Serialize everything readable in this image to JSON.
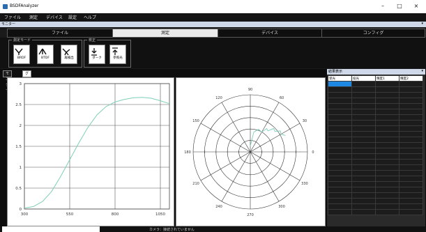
{
  "window": {
    "title": "BSDFAnalyzer",
    "minimize": "–",
    "maximize": "□",
    "close": "×"
  },
  "menu": [
    "ファイル",
    "測定",
    "デバイス",
    "設定",
    "ヘルプ"
  ],
  "monitor_bar": {
    "label": "モニター",
    "pin": "▾"
  },
  "main_tabs": [
    {
      "label": "ファイル",
      "active": false
    },
    {
      "label": "測定",
      "active": true
    },
    {
      "label": "デバイス",
      "active": false
    },
    {
      "label": "コンフィグ",
      "active": false
    }
  ],
  "ribbon": {
    "measure_group": {
      "label": "測定モード",
      "buttons": [
        {
          "label": "BRDF",
          "icon": "brdf-icon"
        },
        {
          "label": "BTDF",
          "icon": "btdf-icon"
        },
        {
          "label": "再検出",
          "icon": "redetect-icon"
        }
      ]
    },
    "calib_group": {
      "label": "校正",
      "buttons": [
        {
          "label": "ダーク",
          "icon": "dark-icon"
        },
        {
          "label": "参照光",
          "icon": "reference-light-icon"
        }
      ]
    }
  },
  "sub_tabs": [
    {
      "label": "モニター",
      "active": false
    },
    {
      "label": "グラフ",
      "active": true
    }
  ],
  "line_chart_axes": {
    "y_ticks": [
      "0",
      "0.5",
      "1",
      "1.5",
      "2",
      "2.5",
      "3"
    ],
    "x_ticks": [
      "300",
      "550",
      "800",
      "1050"
    ]
  },
  "polar_axes": {
    "angle_labels": [
      "90",
      "120",
      "150",
      "180",
      "210",
      "240",
      "270",
      "300",
      "330",
      "0",
      "30",
      "60"
    ]
  },
  "chart_data": [
    {
      "type": "line",
      "title": "",
      "xlabel": "",
      "ylabel": "",
      "xlim": [
        300,
        1100
      ],
      "ylim": [
        0,
        3
      ],
      "grid": true,
      "series": [
        {
          "color": "#7fcfb8",
          "x": [
            300,
            350,
            400,
            450,
            500,
            550,
            600,
            650,
            700,
            750,
            800,
            850,
            900,
            950,
            1000,
            1050,
            1100
          ],
          "y": [
            0.02,
            0.06,
            0.18,
            0.42,
            0.78,
            1.18,
            1.58,
            1.95,
            2.25,
            2.45,
            2.56,
            2.62,
            2.66,
            2.67,
            2.65,
            2.59,
            2.52
          ]
        }
      ]
    },
    {
      "type": "polar",
      "title": "",
      "grid": true,
      "series": [
        {
          "color": "#7fcfb8",
          "theta": [
            90,
            80,
            70,
            60,
            55,
            50,
            45,
            40,
            35,
            30,
            25
          ],
          "r": [
            0.1,
            0.35,
            0.42,
            0.4,
            0.5,
            0.48,
            0.58,
            0.56,
            0.64,
            0.62,
            0.68
          ]
        }
      ]
    }
  ],
  "results": {
    "title": "結果表示",
    "pin": "▾",
    "columns": [
      "受光",
      "投光",
      "輝度1",
      "輝度2"
    ],
    "row_count": 24
  },
  "statusbar": {
    "text": "カメラ：接続されていません"
  }
}
